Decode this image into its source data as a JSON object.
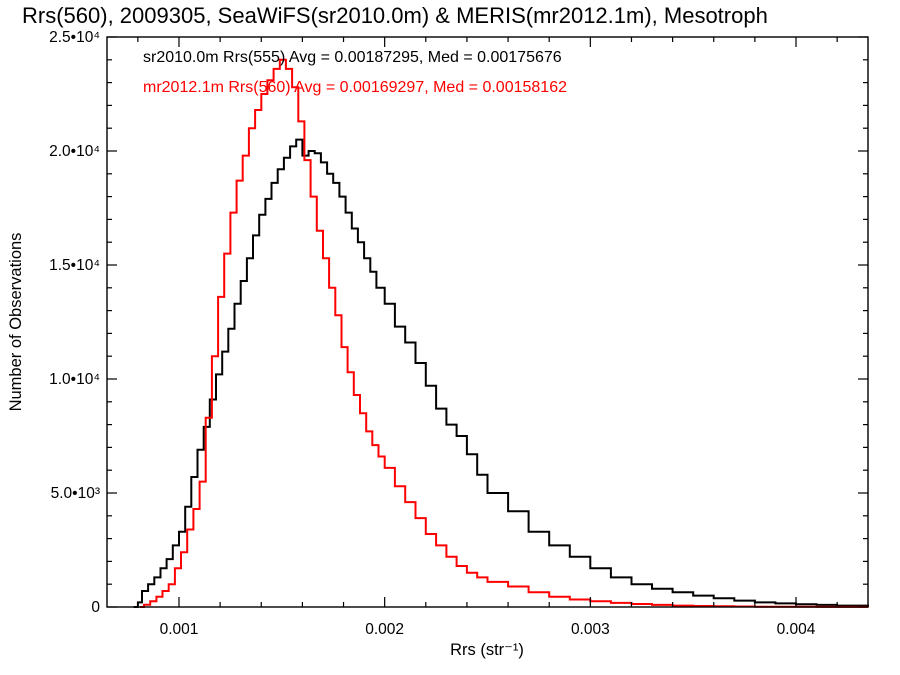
{
  "chart_data": {
    "type": "line",
    "title": "Rrs(560), 2009305, SeaWiFS(sr2010.0m) & MERIS(mr2012.1m), Mesotroph",
    "xlabel": "Rrs (str⁻¹)",
    "ylabel": "Number of Observations",
    "xlim": [
      0.00065,
      0.00435
    ],
    "ylim": [
      0,
      25000
    ],
    "xticks": [
      {
        "value": 0.001,
        "label": "0.001"
      },
      {
        "value": 0.002,
        "label": "0.002"
      },
      {
        "value": 0.003,
        "label": "0.003"
      },
      {
        "value": 0.004,
        "label": "0.004"
      }
    ],
    "yticks": [
      {
        "value": 0,
        "label": "0"
      },
      {
        "value": 5000,
        "label": "5.0•10³"
      },
      {
        "value": 10000,
        "label": "1.0•10⁴"
      },
      {
        "value": 15000,
        "label": "1.5•10⁴"
      },
      {
        "value": 20000,
        "label": "2.0•10⁴"
      },
      {
        "value": 25000,
        "label": "2.5•10⁴"
      }
    ],
    "grid": false,
    "legend_position": "top-left",
    "series": [
      {
        "name": "sr2010.0m Rrs(555) Avg = 0.00187295, Med = 0.00175676",
        "color": "#000000",
        "style": "step",
        "x": [
          0.00078,
          0.0008,
          0.00082,
          0.00085,
          0.00088,
          0.00091,
          0.00094,
          0.00097,
          0.001,
          0.00103,
          0.00106,
          0.00109,
          0.00112,
          0.00115,
          0.00118,
          0.00121,
          0.00124,
          0.00127,
          0.0013,
          0.00133,
          0.00136,
          0.00139,
          0.00142,
          0.00145,
          0.00148,
          0.00151,
          0.00154,
          0.00157,
          0.0016,
          0.00163,
          0.00166,
          0.00169,
          0.00172,
          0.00175,
          0.00178,
          0.00181,
          0.00184,
          0.00187,
          0.0019,
          0.00193,
          0.00196,
          0.002,
          0.00205,
          0.0021,
          0.00215,
          0.0022,
          0.00225,
          0.0023,
          0.00235,
          0.0024,
          0.00245,
          0.0025,
          0.0026,
          0.0027,
          0.0028,
          0.0029,
          0.003,
          0.0031,
          0.0032,
          0.0033,
          0.0034,
          0.0035,
          0.0036,
          0.0037,
          0.0038,
          0.0039,
          0.004,
          0.0041,
          0.0042,
          0.00435
        ],
        "y": [
          0,
          200,
          700,
          1000,
          1300,
          1700,
          2100,
          2700,
          3300,
          4400,
          5700,
          6900,
          7900,
          9100,
          10200,
          11200,
          12200,
          13300,
          14300,
          15300,
          16300,
          17200,
          17900,
          18600,
          19200,
          19700,
          20200,
          20500,
          19800,
          20000,
          19900,
          19500,
          19000,
          18600,
          18000,
          17300,
          16600,
          16000,
          15300,
          14700,
          14000,
          13300,
          12300,
          11600,
          10700,
          9700,
          8700,
          8000,
          7500,
          6700,
          5800,
          5000,
          4200,
          3300,
          2700,
          2200,
          1700,
          1300,
          1000,
          800,
          650,
          500,
          380,
          280,
          200,
          160,
          120,
          90,
          60,
          40
        ]
      },
      {
        "name": "mr2012.1m Rrs(560) Avg = 0.00169297, Med = 0.00158162",
        "color": "#ff0000",
        "style": "step",
        "x": [
          0.00081,
          0.00083,
          0.00086,
          0.00089,
          0.00092,
          0.00095,
          0.00098,
          0.00101,
          0.00104,
          0.00107,
          0.0011,
          0.00113,
          0.00116,
          0.00119,
          0.00122,
          0.00125,
          0.00128,
          0.00131,
          0.00134,
          0.00137,
          0.0014,
          0.00143,
          0.00146,
          0.00149,
          0.00152,
          0.00155,
          0.00158,
          0.00161,
          0.00164,
          0.00167,
          0.0017,
          0.00173,
          0.00176,
          0.00179,
          0.00182,
          0.00185,
          0.00188,
          0.00191,
          0.00194,
          0.00197,
          0.002,
          0.00205,
          0.0021,
          0.00215,
          0.0022,
          0.00225,
          0.0023,
          0.00235,
          0.0024,
          0.00245,
          0.0025,
          0.0026,
          0.0027,
          0.0028,
          0.0029,
          0.003,
          0.0031,
          0.0032,
          0.0033,
          0.0034,
          0.0035,
          0.0036,
          0.0037,
          0.0038,
          0.0039,
          0.004,
          0.0041,
          0.0042,
          0.00435
        ],
        "y": [
          0,
          100,
          250,
          450,
          700,
          1000,
          1700,
          2400,
          3400,
          4300,
          5500,
          8300,
          11000,
          13600,
          15500,
          17300,
          18700,
          19800,
          21000,
          21800,
          22500,
          23100,
          23600,
          24000,
          23600,
          22800,
          21300,
          19600,
          18000,
          16500,
          15300,
          14000,
          12800,
          11400,
          10300,
          9300,
          8500,
          7700,
          7100,
          6600,
          6100,
          5300,
          4600,
          3900,
          3200,
          2700,
          2200,
          1800,
          1500,
          1300,
          1100,
          900,
          650,
          450,
          330,
          250,
          180,
          130,
          90,
          60,
          45,
          30,
          20,
          15,
          10,
          8,
          5,
          3,
          2
        ]
      }
    ]
  }
}
